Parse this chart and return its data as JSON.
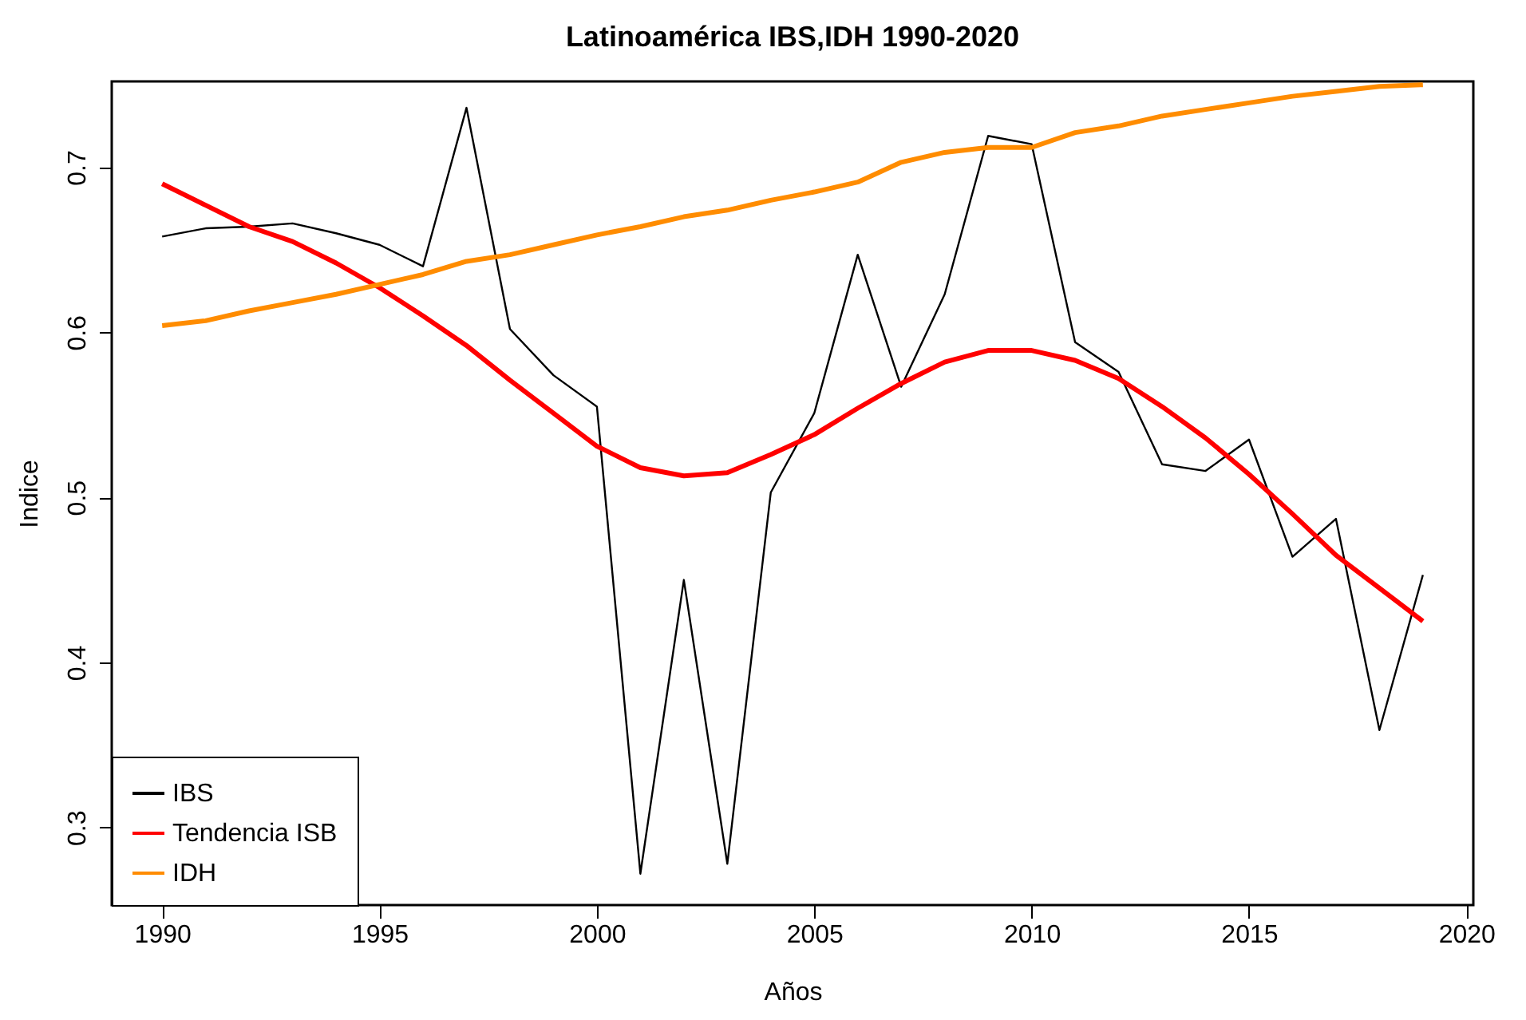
{
  "chart_data": {
    "type": "line",
    "title": "Latinoamérica IBS,IDH 1990-2020",
    "xlabel": "Años",
    "ylabel": "Indice",
    "x": [
      1990,
      1991,
      1992,
      1993,
      1994,
      1995,
      1996,
      1997,
      1998,
      1999,
      2000,
      2001,
      2002,
      2003,
      2004,
      2005,
      2006,
      2007,
      2008,
      2009,
      2010,
      2011,
      2012,
      2013,
      2014,
      2015,
      2016,
      2017,
      2018,
      2019
    ],
    "series": [
      {
        "name": "IBS",
        "color": "#000000",
        "values": [
          0.658,
          0.663,
          0.664,
          0.666,
          0.66,
          0.653,
          0.64,
          0.736,
          0.602,
          0.574,
          0.555,
          0.272,
          0.45,
          0.278,
          0.503,
          0.551,
          0.647,
          0.567,
          0.623,
          0.719,
          0.714,
          0.594,
          0.576,
          0.52,
          0.516,
          0.535,
          0.464,
          0.487,
          0.359,
          0.453
        ]
      },
      {
        "name": "Tendencia ISB",
        "color": "#ff0000",
        "values": [
          0.69,
          0.677,
          0.664,
          0.655,
          0.642,
          0.627,
          0.61,
          0.592,
          0.571,
          0.551,
          0.531,
          0.518,
          0.513,
          0.515,
          0.526,
          0.538,
          0.554,
          0.569,
          0.582,
          0.589,
          0.589,
          0.583,
          0.572,
          0.555,
          0.536,
          0.514,
          0.49,
          0.465,
          0.445,
          0.425
        ]
      },
      {
        "name": "IDH",
        "color": "#ff8c00",
        "values": [
          0.604,
          0.607,
          0.613,
          0.618,
          0.623,
          0.629,
          0.635,
          0.643,
          0.647,
          0.653,
          0.659,
          0.664,
          0.67,
          0.674,
          0.68,
          0.685,
          0.691,
          0.703,
          0.709,
          0.712,
          0.712,
          0.721,
          0.725,
          0.731,
          0.735,
          0.739,
          0.743,
          0.746,
          0.749,
          0.75
        ]
      }
    ],
    "xlim": [
      1988.84,
      2020.16
    ],
    "xticks": [
      1990,
      1995,
      2000,
      2005,
      2010,
      2015,
      2020
    ],
    "ylim": [
      0.253,
      0.752
    ],
    "yticks": [
      0.3,
      0.4,
      0.5,
      0.6,
      0.7
    ],
    "legend": "bottom left",
    "grid": false
  }
}
